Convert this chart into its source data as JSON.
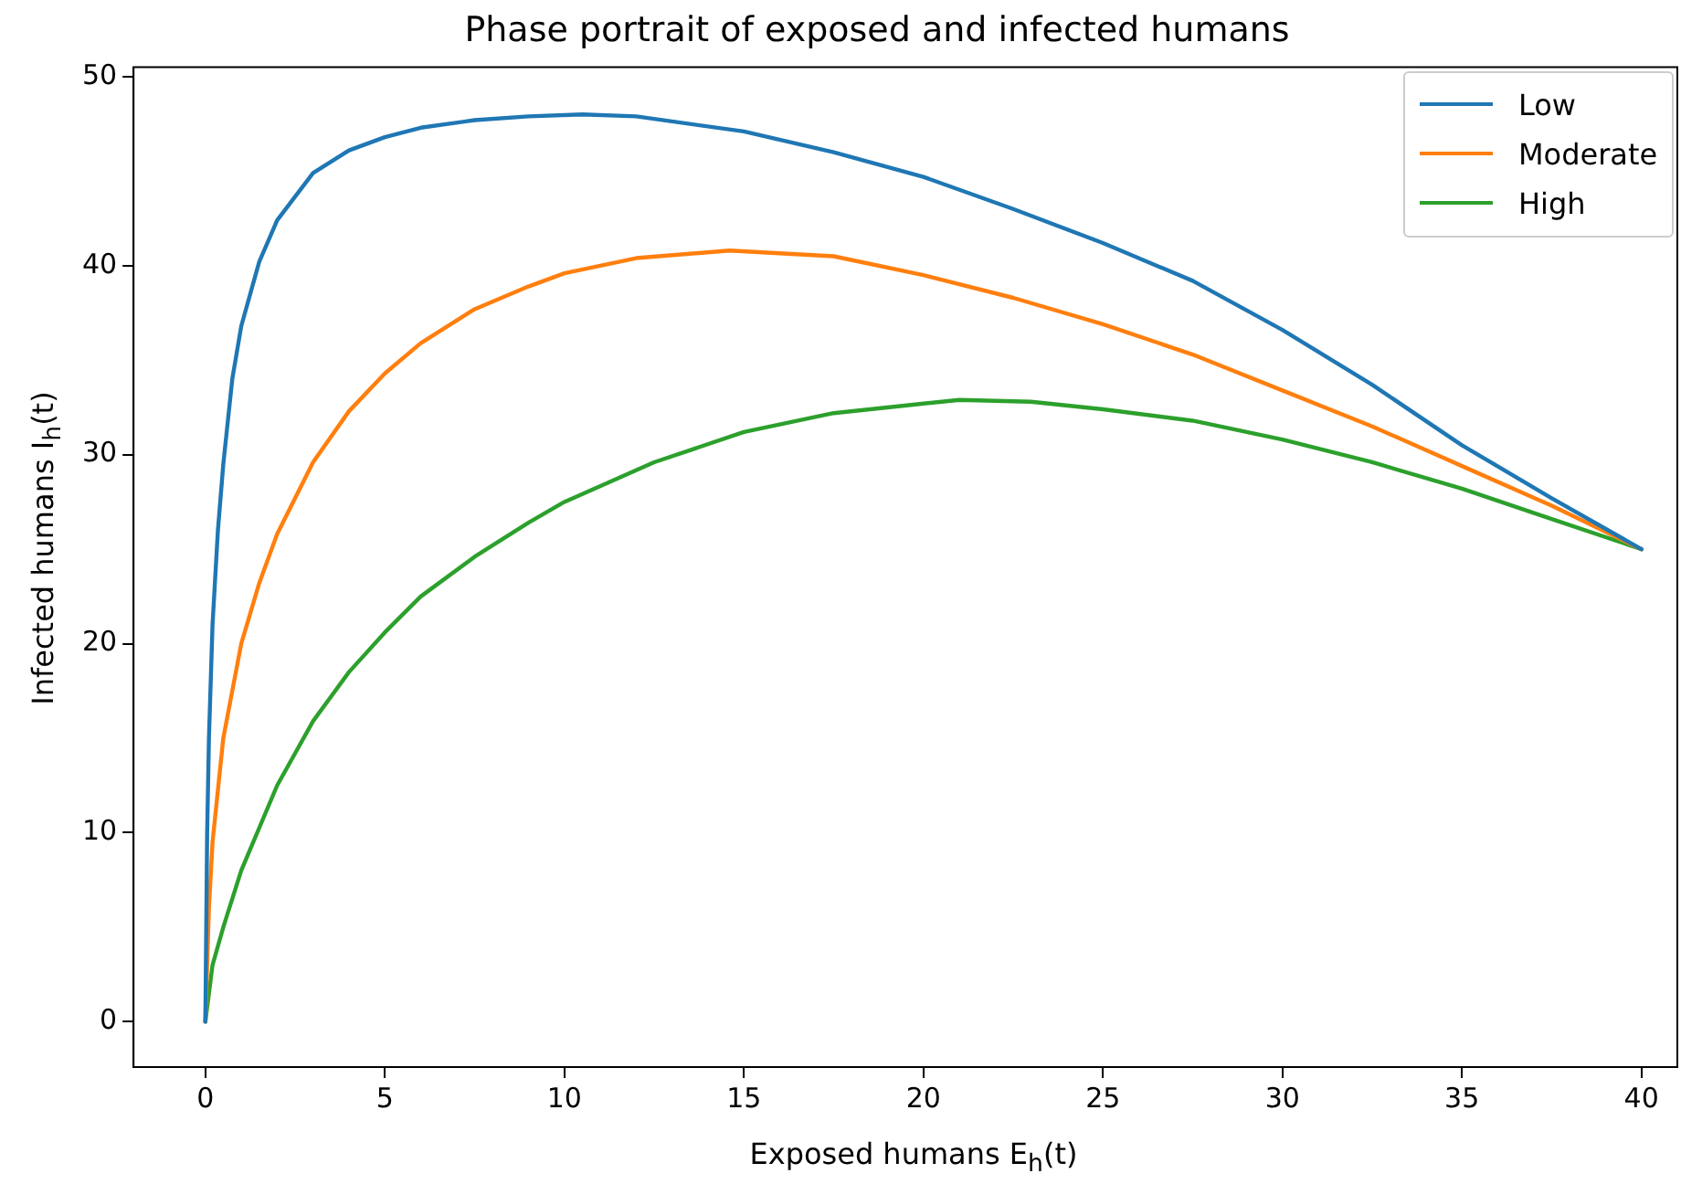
{
  "chart_data": {
    "type": "line",
    "title": "Phase portrait of exposed and infected humans",
    "xlabel": "Exposed humans E$_{h}$(t)",
    "ylabel": "Infected humans I$_{h}$(t)",
    "xlim": [
      -2,
      41
    ],
    "xticks": [
      0,
      5,
      10,
      15,
      20,
      25,
      30,
      35,
      40
    ],
    "ylim": [
      -2.4,
      50.5
    ],
    "yticks": [
      0,
      10,
      20,
      30,
      40,
      50
    ],
    "grid": false,
    "legend": "top right",
    "marker": "none",
    "line_style": "solid",
    "series": [
      {
        "name": "Low",
        "color": "#1f77b4",
        "x": [
          0,
          0.05,
          0.1,
          0.2,
          0.35,
          0.5,
          0.75,
          1,
          1.5,
          2,
          3,
          4,
          5,
          6,
          7.5,
          9,
          10.5,
          12,
          15,
          17.5,
          20,
          22.5,
          25,
          27.5,
          30,
          32.5,
          35,
          37.5,
          40
        ],
        "values": [
          0,
          10,
          15,
          21,
          26,
          29.5,
          34,
          36.8,
          40.2,
          42.4,
          44.9,
          46.1,
          46.8,
          47.3,
          47.7,
          47.9,
          48,
          47.9,
          47.1,
          46,
          44.7,
          43,
          41.2,
          39.2,
          36.6,
          33.7,
          30.5,
          27.7,
          25
        ]
      },
      {
        "name": "Moderate",
        "color": "#ff7f0e",
        "x": [
          0,
          0.1,
          0.2,
          0.5,
          1,
          1.5,
          2,
          3,
          4,
          5,
          6,
          7.5,
          9,
          10,
          12,
          14.6,
          17.5,
          20,
          22.5,
          25,
          27.5,
          30,
          32.5,
          35,
          37.5,
          40
        ],
        "values": [
          0,
          6,
          9.5,
          15,
          20,
          23.2,
          25.8,
          29.6,
          32.3,
          34.3,
          35.9,
          37.7,
          38.9,
          39.6,
          40.4,
          40.8,
          40.5,
          39.5,
          38.3,
          36.9,
          35.3,
          33.4,
          31.5,
          29.4,
          27.3,
          25
        ]
      },
      {
        "name": "High",
        "color": "#2ca02c",
        "x": [
          0,
          0.2,
          0.5,
          1,
          2,
          3,
          4,
          5,
          6,
          7.5,
          9,
          10,
          12.5,
          15,
          17.5,
          21,
          23,
          25,
          27.5,
          30,
          32.5,
          35,
          37.5,
          40
        ],
        "values": [
          0,
          3,
          5,
          8,
          12.5,
          15.9,
          18.5,
          20.6,
          22.5,
          24.6,
          26.4,
          27.5,
          29.6,
          31.2,
          32.2,
          32.9,
          32.8,
          32.4,
          31.8,
          30.8,
          29.6,
          28.2,
          26.6,
          25
        ]
      }
    ]
  }
}
